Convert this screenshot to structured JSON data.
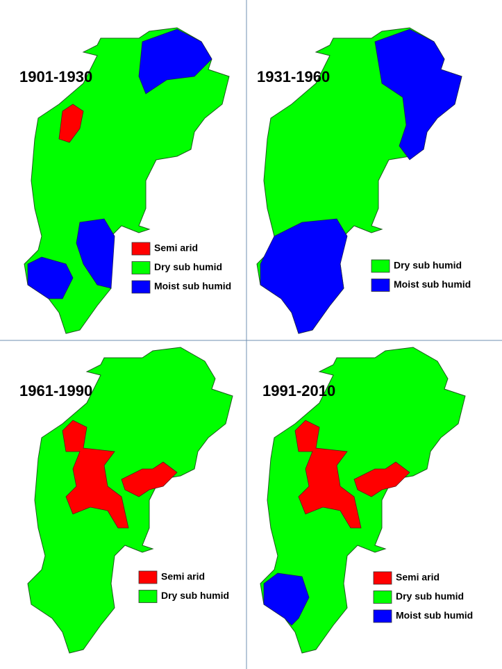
{
  "panels": [
    {
      "title": "1901-1930",
      "legend": [
        {
          "label": "Semi arid",
          "color": "#ff0000"
        },
        {
          "label": "Dry sub humid",
          "color": "#00ff00"
        },
        {
          "label": "Moist sub humid",
          "color": "#0000ff"
        }
      ]
    },
    {
      "title": "1931-1960",
      "legend": [
        {
          "label": "Dry sub humid",
          "color": "#00ff00"
        },
        {
          "label": "Moist sub humid",
          "color": "#0000ff"
        }
      ]
    },
    {
      "title": "1961-1990",
      "legend": [
        {
          "label": "Semi arid",
          "color": "#ff0000"
        },
        {
          "label": "Dry sub humid",
          "color": "#00ff00"
        }
      ]
    },
    {
      "title": "1991-2010",
      "legend": [
        {
          "label": "Semi arid",
          "color": "#ff0000"
        },
        {
          "label": "Dry sub humid",
          "color": "#00ff00"
        },
        {
          "label": "Moist sub humid",
          "color": "#0000ff"
        }
      ]
    }
  ]
}
